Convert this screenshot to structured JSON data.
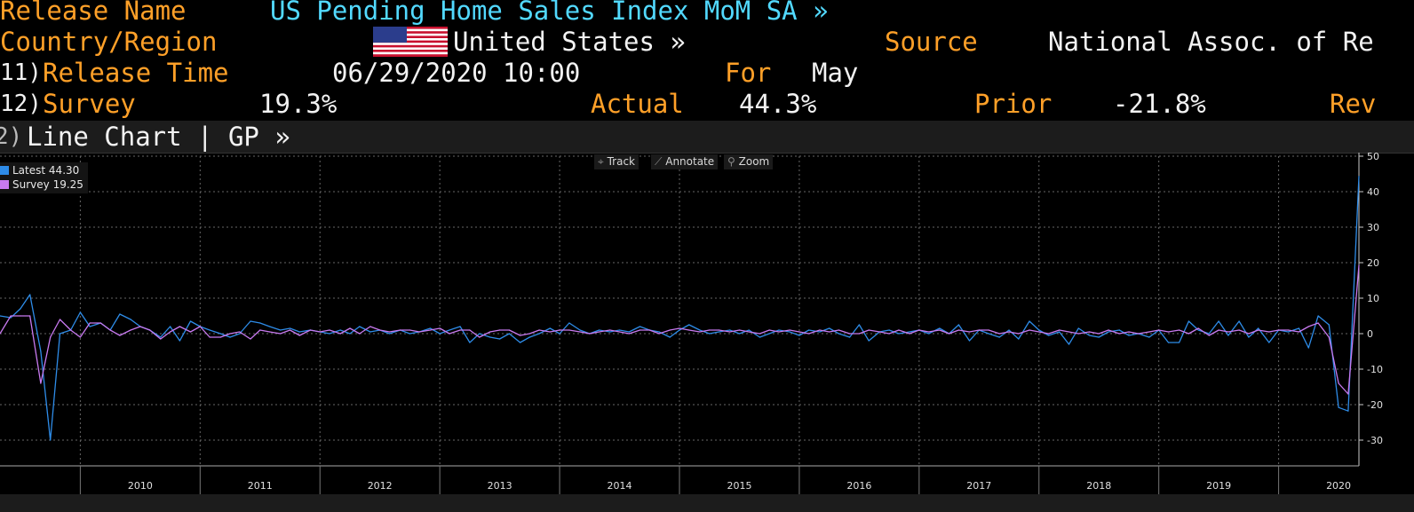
{
  "header": {
    "release_name_label": "Release Name",
    "release_name_value": "US Pending Home Sales Index MoM SA »",
    "country_label": "Country/Region",
    "country_value": "United States »",
    "source_label": "Source",
    "source_value": "National Assoc. of Re",
    "release_time_num": "11)",
    "release_time_label": "Release Time",
    "release_time_value": "06/29/2020 10:00",
    "for_label": "For",
    "for_value": "May",
    "survey_num": "12)",
    "survey_label": "Survey",
    "survey_value": "19.3%",
    "actual_label": "Actual",
    "actual_value": "44.3%",
    "prior_label": "Prior",
    "prior_value": "-21.8%",
    "revised_label": "Rev"
  },
  "panel": {
    "num": "2)",
    "title": "Line Chart | GP »"
  },
  "toolbar": {
    "track": "Track",
    "annotate": "Annotate",
    "zoom": "Zoom"
  },
  "legend": {
    "latest_label": "Latest",
    "latest_value": "44.30",
    "survey_label": "Survey",
    "survey_value": "19.25"
  },
  "colors": {
    "orange": "#ffa028",
    "cyan": "#52d9ff",
    "latest": "#2e8ce8",
    "survey": "#c87af0"
  },
  "chart_data": {
    "type": "line",
    "x_ticks": [
      "2010",
      "2011",
      "2012",
      "2013",
      "2014",
      "2015",
      "2016",
      "2017",
      "2018",
      "2019",
      "2020"
    ],
    "y_ticks": [
      50,
      40,
      30,
      20,
      10,
      0,
      -10,
      -20,
      -30
    ],
    "ylim": [
      -37,
      50
    ],
    "xlim": [
      2009.33,
      2020.67
    ],
    "grid": true,
    "legend_position": "top-left",
    "series": [
      {
        "name": "Latest",
        "color": "#2e8ce8",
        "points": [
          [
            2009.33,
            5
          ],
          [
            2009.42,
            4.5
          ],
          [
            2009.5,
            7
          ],
          [
            2009.58,
            11
          ],
          [
            2009.67,
            -5
          ],
          [
            2009.75,
            -30
          ],
          [
            2009.83,
            0
          ],
          [
            2009.92,
            1
          ],
          [
            2010.0,
            6
          ],
          [
            2010.08,
            2
          ],
          [
            2010.17,
            3
          ],
          [
            2010.25,
            1
          ],
          [
            2010.33,
            5.5
          ],
          [
            2010.42,
            4
          ],
          [
            2010.5,
            2
          ],
          [
            2010.58,
            1
          ],
          [
            2010.67,
            -1
          ],
          [
            2010.75,
            2
          ],
          [
            2010.83,
            -2
          ],
          [
            2010.92,
            3.5
          ],
          [
            2011.0,
            2
          ],
          [
            2011.08,
            1
          ],
          [
            2011.17,
            0
          ],
          [
            2011.25,
            -1
          ],
          [
            2011.33,
            0
          ],
          [
            2011.42,
            3.5
          ],
          [
            2011.5,
            3
          ],
          [
            2011.58,
            2
          ],
          [
            2011.67,
            1
          ],
          [
            2011.75,
            1.5
          ],
          [
            2011.83,
            0.5
          ],
          [
            2011.92,
            1
          ],
          [
            2012.0,
            0.5
          ],
          [
            2012.08,
            0
          ],
          [
            2012.17,
            1
          ],
          [
            2012.25,
            0
          ],
          [
            2012.33,
            2
          ],
          [
            2012.42,
            0.5
          ],
          [
            2012.5,
            1
          ],
          [
            2012.58,
            0
          ],
          [
            2012.67,
            1
          ],
          [
            2012.75,
            0
          ],
          [
            2012.83,
            0.5
          ],
          [
            2012.92,
            1.5
          ],
          [
            2013.0,
            0
          ],
          [
            2013.08,
            1
          ],
          [
            2013.17,
            2
          ],
          [
            2013.25,
            -2.5
          ],
          [
            2013.33,
            0
          ],
          [
            2013.42,
            -1
          ],
          [
            2013.5,
            -1.5
          ],
          [
            2013.58,
            0
          ],
          [
            2013.67,
            -2.5
          ],
          [
            2013.75,
            -1
          ],
          [
            2013.83,
            0
          ],
          [
            2013.92,
            1.5
          ],
          [
            2014.0,
            0
          ],
          [
            2014.08,
            3
          ],
          [
            2014.17,
            1
          ],
          [
            2014.25,
            0
          ],
          [
            2014.33,
            1
          ],
          [
            2014.42,
            0.5
          ],
          [
            2014.5,
            1
          ],
          [
            2014.58,
            0.5
          ],
          [
            2014.67,
            2
          ],
          [
            2014.75,
            1
          ],
          [
            2014.83,
            0.5
          ],
          [
            2014.92,
            -1
          ],
          [
            2015.0,
            1
          ],
          [
            2015.08,
            2.5
          ],
          [
            2015.17,
            1
          ],
          [
            2015.25,
            0
          ],
          [
            2015.33,
            0.5
          ],
          [
            2015.42,
            1
          ],
          [
            2015.5,
            0
          ],
          [
            2015.58,
            1
          ],
          [
            2015.67,
            -1
          ],
          [
            2015.75,
            0
          ],
          [
            2015.83,
            1
          ],
          [
            2015.92,
            0.5
          ],
          [
            2016.0,
            -0.5
          ],
          [
            2016.08,
            1
          ],
          [
            2016.17,
            0.5
          ],
          [
            2016.25,
            1.5
          ],
          [
            2016.33,
            0
          ],
          [
            2016.42,
            -1
          ],
          [
            2016.5,
            2.5
          ],
          [
            2016.58,
            -2
          ],
          [
            2016.67,
            0.5
          ],
          [
            2016.75,
            1
          ],
          [
            2016.83,
            0
          ],
          [
            2016.92,
            0.5
          ],
          [
            2017.0,
            1
          ],
          [
            2017.08,
            0
          ],
          [
            2017.17,
            1.5
          ],
          [
            2017.25,
            0
          ],
          [
            2017.33,
            2.5
          ],
          [
            2017.42,
            -2
          ],
          [
            2017.5,
            1
          ],
          [
            2017.58,
            0
          ],
          [
            2017.67,
            -1
          ],
          [
            2017.75,
            1
          ],
          [
            2017.83,
            -1.5
          ],
          [
            2017.92,
            3.5
          ],
          [
            2018.0,
            1
          ],
          [
            2018.08,
            -0.5
          ],
          [
            2018.17,
            0.5
          ],
          [
            2018.25,
            -3
          ],
          [
            2018.33,
            1.5
          ],
          [
            2018.42,
            -0.5
          ],
          [
            2018.5,
            -1
          ],
          [
            2018.58,
            0.5
          ],
          [
            2018.67,
            1
          ],
          [
            2018.75,
            -0.5
          ],
          [
            2018.83,
            0
          ],
          [
            2018.92,
            -1
          ],
          [
            2019.0,
            1
          ],
          [
            2019.08,
            -2.5
          ],
          [
            2019.17,
            -2.5
          ],
          [
            2019.25,
            3.5
          ],
          [
            2019.33,
            1
          ],
          [
            2019.42,
            0
          ],
          [
            2019.5,
            3.5
          ],
          [
            2019.58,
            -0.5
          ],
          [
            2019.67,
            3.5
          ],
          [
            2019.75,
            -1
          ],
          [
            2019.83,
            1.5
          ],
          [
            2019.92,
            -2.5
          ],
          [
            2020.0,
            1
          ],
          [
            2020.08,
            0.5
          ],
          [
            2020.17,
            1.5
          ],
          [
            2020.25,
            -4
          ],
          [
            2020.33,
            5
          ],
          [
            2020.42,
            2.5
          ],
          [
            2020.5,
            -20.8
          ],
          [
            2020.58,
            -21.8
          ],
          [
            2020.67,
            44.3
          ]
        ]
      },
      {
        "name": "Survey",
        "color": "#c87af0",
        "points": [
          [
            2009.33,
            0
          ],
          [
            2009.42,
            5
          ],
          [
            2009.5,
            5
          ],
          [
            2009.58,
            5
          ],
          [
            2009.67,
            -14
          ],
          [
            2009.75,
            -1
          ],
          [
            2009.83,
            4
          ],
          [
            2009.92,
            1
          ],
          [
            2010.0,
            -1
          ],
          [
            2010.08,
            3
          ],
          [
            2010.17,
            3
          ],
          [
            2010.25,
            1
          ],
          [
            2010.33,
            -0.5
          ],
          [
            2010.42,
            1
          ],
          [
            2010.5,
            2
          ],
          [
            2010.58,
            1
          ],
          [
            2010.67,
            -1.5
          ],
          [
            2010.75,
            0.5
          ],
          [
            2010.83,
            2
          ],
          [
            2010.92,
            0.5
          ],
          [
            2011.0,
            2
          ],
          [
            2011.08,
            -1
          ],
          [
            2011.17,
            -1
          ],
          [
            2011.25,
            0
          ],
          [
            2011.33,
            0.5
          ],
          [
            2011.42,
            -1.5
          ],
          [
            2011.5,
            1
          ],
          [
            2011.58,
            0.5
          ],
          [
            2011.67,
            0
          ],
          [
            2011.75,
            1
          ],
          [
            2011.83,
            -0.5
          ],
          [
            2011.92,
            1
          ],
          [
            2012.0,
            0.5
          ],
          [
            2012.08,
            1
          ],
          [
            2012.17,
            0
          ],
          [
            2012.25,
            1.5
          ],
          [
            2012.33,
            0
          ],
          [
            2012.42,
            2
          ],
          [
            2012.5,
            1
          ],
          [
            2012.58,
            0.5
          ],
          [
            2012.67,
            1
          ],
          [
            2012.75,
            1
          ],
          [
            2012.83,
            0.5
          ],
          [
            2012.92,
            1
          ],
          [
            2013.0,
            1.5
          ],
          [
            2013.08,
            0
          ],
          [
            2013.17,
            1
          ],
          [
            2013.25,
            1
          ],
          [
            2013.33,
            -1
          ],
          [
            2013.42,
            0.5
          ],
          [
            2013.5,
            1
          ],
          [
            2013.58,
            1
          ],
          [
            2013.67,
            -0.5
          ],
          [
            2013.75,
            0
          ],
          [
            2013.83,
            1
          ],
          [
            2013.92,
            0.5
          ],
          [
            2014.0,
            1
          ],
          [
            2014.08,
            1
          ],
          [
            2014.17,
            0.5
          ],
          [
            2014.25,
            0
          ],
          [
            2014.33,
            0.5
          ],
          [
            2014.42,
            1
          ],
          [
            2014.5,
            0.5
          ],
          [
            2014.58,
            0
          ],
          [
            2014.67,
            1
          ],
          [
            2014.75,
            1
          ],
          [
            2014.83,
            0
          ],
          [
            2014.92,
            1
          ],
          [
            2015.0,
            1.5
          ],
          [
            2015.08,
            1
          ],
          [
            2015.17,
            0.5
          ],
          [
            2015.25,
            1
          ],
          [
            2015.33,
            1
          ],
          [
            2015.42,
            0.5
          ],
          [
            2015.5,
            1
          ],
          [
            2015.58,
            0.5
          ],
          [
            2015.67,
            0
          ],
          [
            2015.75,
            1
          ],
          [
            2015.83,
            0.5
          ],
          [
            2015.92,
            1
          ],
          [
            2016.0,
            0.5
          ],
          [
            2016.08,
            0
          ],
          [
            2016.17,
            1
          ],
          [
            2016.25,
            0.5
          ],
          [
            2016.33,
            1
          ],
          [
            2016.42,
            0
          ],
          [
            2016.5,
            0
          ],
          [
            2016.58,
            1
          ],
          [
            2016.67,
            0.5
          ],
          [
            2016.75,
            0
          ],
          [
            2016.83,
            1
          ],
          [
            2016.92,
            0
          ],
          [
            2017.0,
            1
          ],
          [
            2017.08,
            0.5
          ],
          [
            2017.17,
            1
          ],
          [
            2017.25,
            0
          ],
          [
            2017.33,
            1
          ],
          [
            2017.42,
            0.5
          ],
          [
            2017.5,
            1
          ],
          [
            2017.58,
            1
          ],
          [
            2017.67,
            0
          ],
          [
            2017.75,
            0.5
          ],
          [
            2017.83,
            0
          ],
          [
            2017.92,
            1
          ],
          [
            2018.0,
            0.5
          ],
          [
            2018.08,
            0
          ],
          [
            2018.17,
            1
          ],
          [
            2018.25,
            0.5
          ],
          [
            2018.33,
            0
          ],
          [
            2018.42,
            0.5
          ],
          [
            2018.5,
            0
          ],
          [
            2018.58,
            1
          ],
          [
            2018.67,
            0
          ],
          [
            2018.75,
            0.5
          ],
          [
            2018.83,
            0
          ],
          [
            2018.92,
            0.5
          ],
          [
            2019.0,
            1
          ],
          [
            2019.08,
            0.5
          ],
          [
            2019.17,
            1
          ],
          [
            2019.25,
            0
          ],
          [
            2019.33,
            1.5
          ],
          [
            2019.42,
            -0.5
          ],
          [
            2019.5,
            1
          ],
          [
            2019.58,
            0.5
          ],
          [
            2019.67,
            1
          ],
          [
            2019.75,
            0
          ],
          [
            2019.83,
            1
          ],
          [
            2019.92,
            0.5
          ],
          [
            2020.0,
            1
          ],
          [
            2020.08,
            1
          ],
          [
            2020.17,
            0.5
          ],
          [
            2020.25,
            2
          ],
          [
            2020.33,
            3
          ],
          [
            2020.42,
            -1
          ],
          [
            2020.5,
            -14
          ],
          [
            2020.58,
            -17
          ],
          [
            2020.67,
            19.25
          ]
        ]
      }
    ]
  }
}
